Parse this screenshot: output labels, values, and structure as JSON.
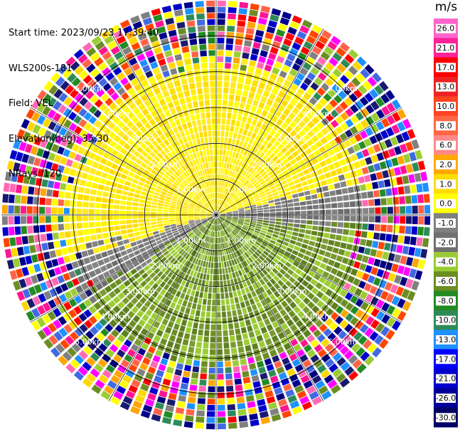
{
  "header": {
    "start_time": "Start time: 2023/09/23 17:39:40",
    "station": "WLS200s-181",
    "field": "Field: VEL",
    "elevation": "Elevation(deg): 35.30",
    "nrays": "NRays: 120"
  },
  "chart_data": {
    "type": "heatmap",
    "projection": "polar-ppi",
    "field": "VEL",
    "units": "m/s",
    "nrays": 120,
    "max_range_km": 6.0,
    "range_rings_km": [
      1.0,
      2.0,
      3.0,
      4.0,
      5.0
    ],
    "ring_labels": [
      "1.00km",
      "2.00km",
      "3.00km",
      "4.00km",
      "5.00km"
    ],
    "spokes_deg": [
      0,
      30,
      60,
      90,
      120,
      150,
      180,
      210,
      240,
      270,
      300,
      330
    ],
    "colorbar": {
      "unit_label": "m/s",
      "tick_labels": [
        "26.0",
        "21.0",
        "17.0",
        "13.0",
        "10.0",
        "8.0",
        "6.0",
        "2.0",
        "1.0",
        "0.0",
        "-1.0",
        "-2.0",
        "-4.0",
        "-6.0",
        "-8.0",
        "-10.0",
        "-13.0",
        "-17.0",
        "-21.0",
        "-26.0",
        "-30.0"
      ],
      "colors": [
        "#ff66cc",
        "#ff2299",
        "#ff0000",
        "#ee2222",
        "#ff4422",
        "#ff6644",
        "#ff8888",
        "#ffaa00",
        "#ffdd00",
        "#ffff00",
        "#808080",
        "#707070",
        "#99cc33",
        "#6b8e23",
        "#228b22",
        "#2e8b57",
        "#1e90ff",
        "#0000ff",
        "#0000cc",
        "#000099",
        "#000066"
      ]
    }
  }
}
